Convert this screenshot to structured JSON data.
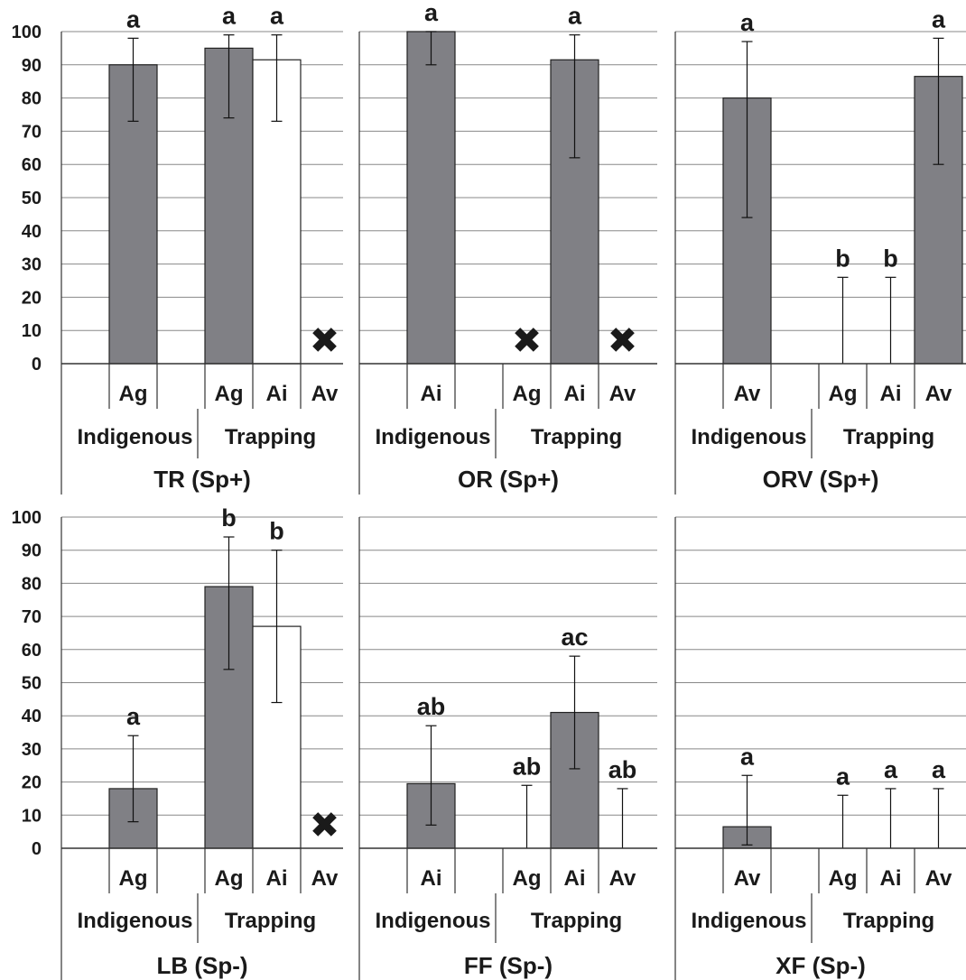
{
  "chart_data": {
    "type": "bar",
    "y_ticks": [
      "0",
      "10",
      "20",
      "30",
      "40",
      "50",
      "60",
      "70",
      "80",
      "90",
      "100"
    ],
    "ylim": [
      0,
      100
    ],
    "grid": true,
    "colors": {
      "gray_bar": "#808085",
      "white_bar": "#ffffff",
      "axis": "#333333",
      "grid": "#888888"
    },
    "absent_marker": "✖",
    "panels": [
      {
        "title": "TR (Sp+)",
        "first_row_labels": [
          "Ag",
          "",
          "Ag",
          "Ai",
          "Av"
        ],
        "group_labels": [
          "Indigenous",
          "Trapping"
        ],
        "bars": [
          {
            "slot": 0,
            "value": 90,
            "err_low": 73,
            "err_high": 98,
            "fill": "gray",
            "letter": "a"
          },
          {
            "slot": 2,
            "value": 95,
            "err_low": 74,
            "err_high": 99,
            "fill": "gray",
            "letter": "a"
          },
          {
            "slot": 3,
            "value": 91.5,
            "err_low": 73,
            "err_high": 99,
            "fill": "white",
            "letter": "a"
          },
          {
            "slot": 4,
            "absent": true
          }
        ]
      },
      {
        "title": "OR (Sp+)",
        "first_row_labels": [
          "Ai",
          "",
          "Ag",
          "Ai",
          "Av"
        ],
        "group_labels": [
          "Indigenous",
          "Trapping"
        ],
        "bars": [
          {
            "slot": 0,
            "value": 100,
            "err_low": 90,
            "err_high": 100,
            "fill": "gray",
            "letter": "a"
          },
          {
            "slot": 2,
            "absent": true
          },
          {
            "slot": 3,
            "value": 91.5,
            "err_low": 62,
            "err_high": 99,
            "fill": "gray",
            "letter": "a"
          },
          {
            "slot": 4,
            "absent": true
          }
        ]
      },
      {
        "title": "ORV (Sp+)",
        "first_row_labels": [
          "Av",
          "",
          "Ag",
          "Ai",
          "Av"
        ],
        "group_labels": [
          "Indigenous",
          "Trapping"
        ],
        "bars": [
          {
            "slot": 0,
            "value": 80,
            "err_low": 44,
            "err_high": 97,
            "fill": "gray",
            "letter": "a"
          },
          {
            "slot": 2,
            "value": 0,
            "err_low": 0,
            "err_high": 26,
            "fill": "gray",
            "letter": "b"
          },
          {
            "slot": 3,
            "value": 0,
            "err_low": 0,
            "err_high": 26,
            "fill": "gray",
            "letter": "b"
          },
          {
            "slot": 4,
            "value": 86.5,
            "err_low": 60,
            "err_high": 98,
            "fill": "gray",
            "letter": "a"
          }
        ]
      },
      {
        "title": "LB (Sp-)",
        "first_row_labels": [
          "Ag",
          "",
          "Ag",
          "Ai",
          "Av"
        ],
        "group_labels": [
          "Indigenous",
          "Trapping"
        ],
        "bars": [
          {
            "slot": 0,
            "value": 18,
            "err_low": 8,
            "err_high": 34,
            "fill": "gray",
            "letter": "a"
          },
          {
            "slot": 2,
            "value": 79,
            "err_low": 54,
            "err_high": 94,
            "fill": "gray",
            "letter": "b"
          },
          {
            "slot": 3,
            "value": 67,
            "err_low": 44,
            "err_high": 90,
            "fill": "white",
            "letter": "b"
          },
          {
            "slot": 4,
            "absent": true
          }
        ]
      },
      {
        "title": "FF (Sp-)",
        "first_row_labels": [
          "Ai",
          "",
          "Ag",
          "Ai",
          "Av"
        ],
        "group_labels": [
          "Indigenous",
          "Trapping"
        ],
        "bars": [
          {
            "slot": 0,
            "value": 19.5,
            "err_low": 7,
            "err_high": 37,
            "fill": "gray",
            "letter": "ab"
          },
          {
            "slot": 2,
            "value": 0,
            "err_low": 0,
            "err_high": 19,
            "fill": "gray",
            "letter": "ab"
          },
          {
            "slot": 3,
            "value": 41,
            "err_low": 24,
            "err_high": 58,
            "fill": "gray",
            "letter": "ac"
          },
          {
            "slot": 4,
            "value": 0,
            "err_low": 0,
            "err_high": 18,
            "fill": "gray",
            "letter": "ab"
          }
        ]
      },
      {
        "title": "XF (Sp-)",
        "first_row_labels": [
          "Av",
          "",
          "Ag",
          "Ai",
          "Av"
        ],
        "group_labels": [
          "Indigenous",
          "Trapping"
        ],
        "bars": [
          {
            "slot": 0,
            "value": 6.5,
            "err_low": 1,
            "err_high": 22,
            "fill": "gray",
            "letter": "a"
          },
          {
            "slot": 2,
            "value": 0,
            "err_low": 0,
            "err_high": 16,
            "fill": "gray",
            "letter": "a"
          },
          {
            "slot": 3,
            "value": 0,
            "err_low": 0,
            "err_high": 18,
            "fill": "gray",
            "letter": "a"
          },
          {
            "slot": 4,
            "value": 0,
            "err_low": 0,
            "err_high": 18,
            "fill": "gray",
            "letter": "a"
          }
        ]
      }
    ]
  }
}
